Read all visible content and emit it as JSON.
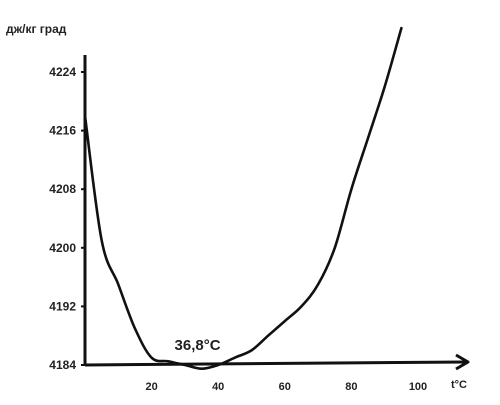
{
  "chart_data": {
    "type": "line",
    "ylabel": "дж/кг град",
    "xlabel": "t°C",
    "x_ticks": [
      20,
      40,
      60,
      80,
      100
    ],
    "y_ticks": [
      4184,
      4192,
      4200,
      4208,
      4216,
      4224
    ],
    "xlim": [
      0,
      110
    ],
    "ylim": [
      4184,
      4224
    ],
    "annotation": {
      "text": "36,8°C",
      "x": 36.8,
      "color": "#e8192c"
    },
    "series": [
      {
        "x": [
          0,
          5,
          10,
          15,
          20,
          25,
          30,
          35,
          40,
          45,
          50,
          55,
          60,
          65,
          70,
          75,
          80,
          85,
          90,
          95
        ],
        "values": [
          4218,
          4201,
          4195,
          4189,
          4185,
          4184.5,
          4184,
          4183.5,
          4184,
          4185,
          4186,
          4188,
          4190,
          4192,
          4195,
          4200,
          4208,
          4215,
          4222,
          4230
        ]
      }
    ]
  }
}
